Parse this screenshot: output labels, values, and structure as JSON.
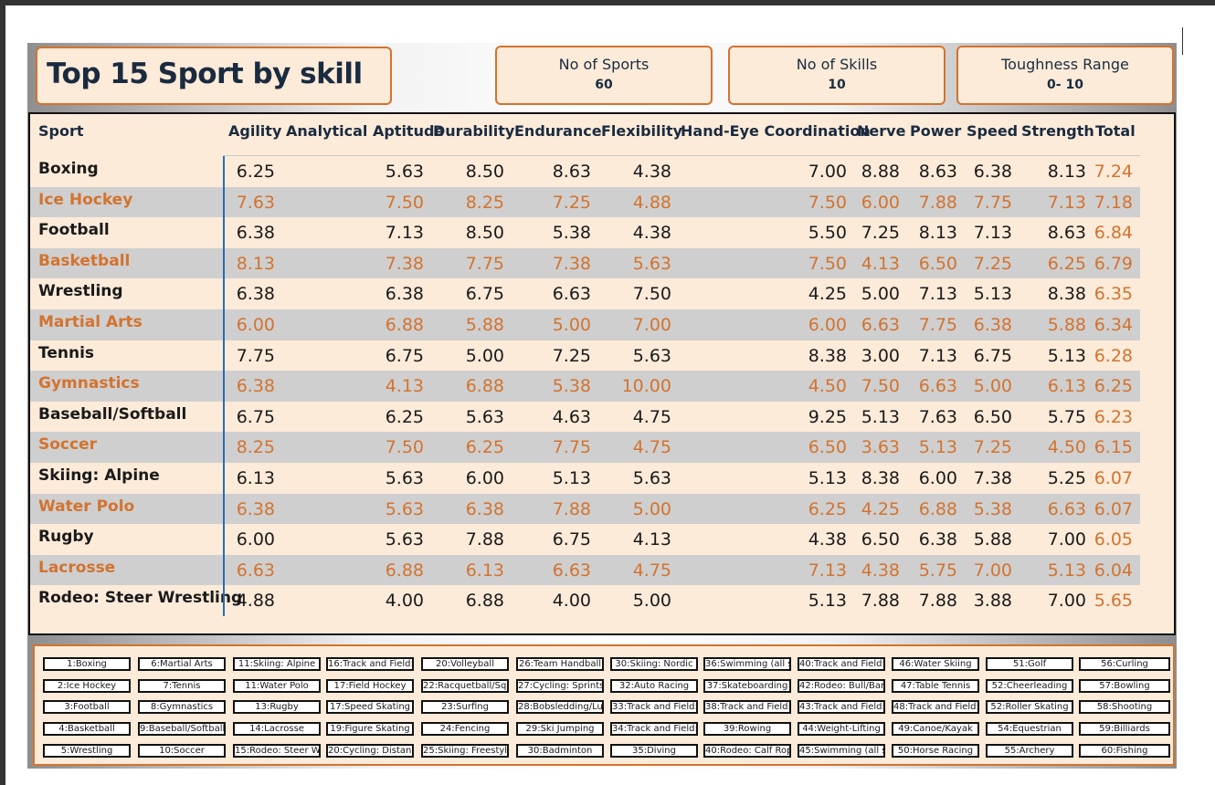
{
  "title": "Top 15 Sport by skill",
  "kpis": [
    {
      "label": "No of Sports",
      "value": "60"
    },
    {
      "label": "No of Skills",
      "value": "10"
    },
    {
      "label": "Toughness Range",
      "value": "0- 10"
    }
  ],
  "table": {
    "columns": [
      "Sport",
      "Agility",
      "Analytical Aptitude",
      "Durability",
      "Endurance",
      "Flexibility",
      "Hand-Eye Coordination",
      "Nerve",
      "Power",
      "Speed",
      "Strength",
      "Total"
    ],
    "rows": [
      [
        "Boxing",
        "6.25",
        "5.63",
        "8.50",
        "8.63",
        "4.38",
        "7.00",
        "8.88",
        "8.63",
        "6.38",
        "8.13",
        "7.24"
      ],
      [
        "Ice Hockey",
        "7.63",
        "7.50",
        "8.25",
        "7.25",
        "4.88",
        "7.50",
        "6.00",
        "7.88",
        "7.75",
        "7.13",
        "7.18"
      ],
      [
        "Football",
        "6.38",
        "7.13",
        "8.50",
        "5.38",
        "4.38",
        "5.50",
        "7.25",
        "8.13",
        "7.13",
        "8.63",
        "6.84"
      ],
      [
        "Basketball",
        "8.13",
        "7.38",
        "7.75",
        "7.38",
        "5.63",
        "7.50",
        "4.13",
        "6.50",
        "7.25",
        "6.25",
        "6.79"
      ],
      [
        "Wrestling",
        "6.38",
        "6.38",
        "6.75",
        "6.63",
        "7.50",
        "4.25",
        "5.00",
        "7.13",
        "5.13",
        "8.38",
        "6.35"
      ],
      [
        "Martial Arts",
        "6.00",
        "6.88",
        "5.88",
        "5.00",
        "7.00",
        "6.00",
        "6.63",
        "7.75",
        "6.38",
        "5.88",
        "6.34"
      ],
      [
        "Tennis",
        "7.75",
        "6.75",
        "5.00",
        "7.25",
        "5.63",
        "8.38",
        "3.00",
        "7.13",
        "6.75",
        "5.13",
        "6.28"
      ],
      [
        "Gymnastics",
        "6.38",
        "4.13",
        "6.88",
        "5.38",
        "10.00",
        "4.50",
        "7.50",
        "6.63",
        "5.00",
        "6.13",
        "6.25"
      ],
      [
        "Baseball/Softball",
        "6.75",
        "6.25",
        "5.63",
        "4.63",
        "4.75",
        "9.25",
        "5.13",
        "7.63",
        "6.50",
        "5.75",
        "6.23"
      ],
      [
        "Soccer",
        "8.25",
        "7.50",
        "6.25",
        "7.75",
        "4.75",
        "6.50",
        "3.63",
        "5.13",
        "7.25",
        "4.50",
        "6.15"
      ],
      [
        "Skiing: Alpine",
        "6.13",
        "5.63",
        "6.00",
        "5.13",
        "5.63",
        "5.13",
        "8.38",
        "6.00",
        "7.38",
        "5.25",
        "6.07"
      ],
      [
        "Water Polo",
        "6.38",
        "5.63",
        "6.38",
        "7.88",
        "5.00",
        "6.25",
        "4.25",
        "6.88",
        "5.38",
        "6.63",
        "6.07"
      ],
      [
        "Rugby",
        "6.00",
        "5.63",
        "7.88",
        "6.75",
        "4.13",
        "4.38",
        "6.50",
        "6.38",
        "5.88",
        "7.00",
        "6.05"
      ],
      [
        "Lacrosse",
        "6.63",
        "6.88",
        "6.13",
        "6.63",
        "4.75",
        "7.13",
        "4.38",
        "5.75",
        "7.00",
        "5.13",
        "6.04"
      ],
      [
        "Rodeo: Steer Wrestling",
        "4.88",
        "4.00",
        "6.88",
        "4.00",
        "5.00",
        "5.13",
        "7.88",
        "7.88",
        "3.88",
        "7.00",
        "5.65"
      ]
    ]
  },
  "legend": [
    [
      "1:Boxing",
      "2:Ice Hockey",
      "3:Football",
      "4:Basketball",
      "5:Wrestling"
    ],
    [
      "6:Martial Arts",
      "7:Tennis",
      "8:Gymnastics",
      "9:Baseball/Softball",
      "10:Soccer"
    ],
    [
      "11:Skiing: Alpine",
      "11:Water Polo",
      "13:Rugby",
      "14:Lacrosse",
      "15:Rodeo: Steer W"
    ],
    [
      "16:Track and Field:",
      "17:Field Hockey",
      "17:Speed Skating",
      "19:Figure Skating",
      "20:Cycling: Distanc"
    ],
    [
      "20:Volleyball",
      "22:Racquetball/Squ",
      "23:Surfing",
      "24:Fencing",
      "25:Skiing: Freestyle"
    ],
    [
      "26:Team Handball",
      "27:Cycling: Sprints",
      "28:Bobsledding/Lu",
      "29:Ski Jumping",
      "30:Badminton"
    ],
    [
      "30:Skiing: Nordic",
      "32:Auto Racing",
      "33:Track and Field:",
      "34:Track and Field:",
      "35:Diving"
    ],
    [
      "36:Swimming (all st",
      "37:Skateboarding",
      "38:Track and Field:",
      "39:Rowing",
      "40:Rodeo: Calf Rop"
    ],
    [
      "40:Track and Field:",
      "42:Rodeo: Bull/Bar",
      "43:Track and Field:",
      "44:Weight-Lifting",
      "45:Swimming (all st"
    ],
    [
      "46:Water Skiing",
      "47:Table Tennis",
      "48:Track and Field:",
      "49:Canoe/Kayak",
      "50:Horse Racing"
    ],
    [
      "51:Golf",
      "52:Cheerleading",
      "52:Roller Skating",
      "54:Equestrian",
      "55:Archery"
    ],
    [
      "56:Curling",
      "57:Bowling",
      "58:Shooting",
      "59:Billiards",
      "60:Fishing"
    ]
  ]
}
